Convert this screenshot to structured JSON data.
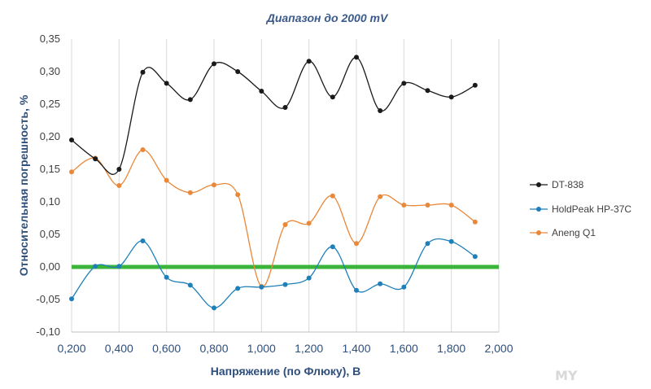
{
  "chart_data": {
    "type": "line",
    "title": "Диапазон  до 2000 mV",
    "xlabel": "Напряжение  (по Флюку), В",
    "ylabel": "Относительная  погрешность, %",
    "xlim": [
      0.2,
      2.0
    ],
    "ylim": [
      -0.1,
      0.35
    ],
    "x_ticks": [
      "0,200",
      "0,400",
      "0,600",
      "0,800",
      "1,000",
      "1,200",
      "1,400",
      "1,600",
      "1,800",
      "2,000"
    ],
    "y_ticks": [
      "-0,10",
      "-0,05",
      "0,00",
      "0,05",
      "0,10",
      "0,15",
      "0,20",
      "0,25",
      "0,30",
      "0,35"
    ],
    "grid": "vertical",
    "legend_position": "right",
    "x": [
      0.2,
      0.3,
      0.4,
      0.5,
      0.6,
      0.7,
      0.8,
      0.9,
      1.0,
      1.1,
      1.2,
      1.3,
      1.4,
      1.5,
      1.6,
      1.7,
      1.8,
      1.9
    ],
    "series": [
      {
        "name": "DT-838",
        "color": "#1a1a1a",
        "values": [
          0.195,
          0.166,
          0.15,
          0.299,
          0.282,
          0.257,
          0.312,
          0.3,
          0.27,
          0.245,
          0.316,
          0.261,
          0.322,
          0.24,
          0.282,
          0.271,
          0.261,
          0.279
        ]
      },
      {
        "name": "HoldPeak HP-37C",
        "color": "#1f7fb8",
        "values": [
          -0.049,
          0.001,
          0.001,
          0.04,
          -0.016,
          -0.028,
          -0.063,
          -0.033,
          -0.031,
          -0.027,
          -0.017,
          0.031,
          -0.036,
          -0.026,
          -0.031,
          0.036,
          0.039,
          0.016
        ]
      },
      {
        "name": "Aneng Q1",
        "color": "#e8883a",
        "values": [
          0.146,
          0.167,
          0.125,
          0.18,
          0.133,
          0.114,
          0.126,
          0.111,
          -0.03,
          0.065,
          0.067,
          0.109,
          0.036,
          0.108,
          0.095,
          0.095,
          0.095,
          0.069
        ]
      }
    ],
    "zero_line": {
      "value": 0.0,
      "color": "#3ab53a"
    }
  },
  "watermark": "MY"
}
